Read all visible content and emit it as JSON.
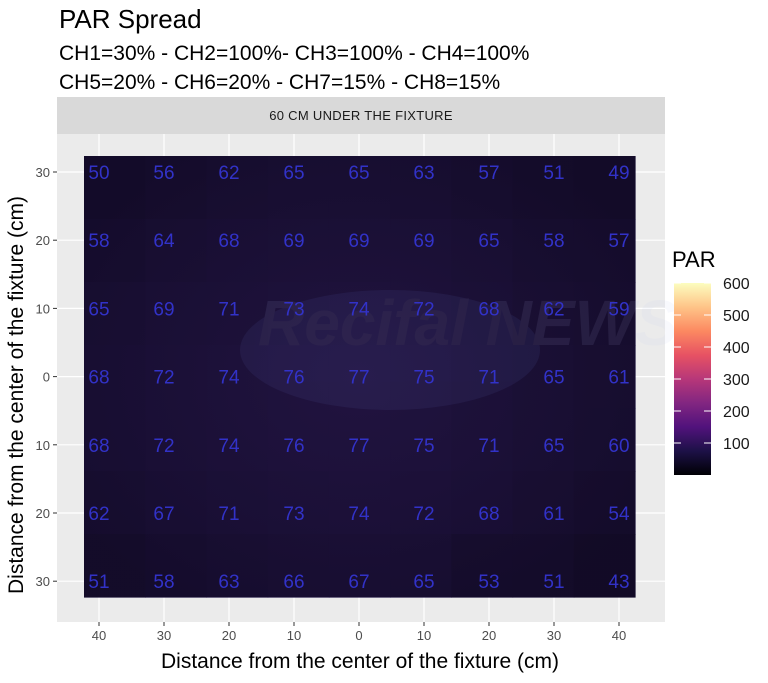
{
  "title": "PAR Spread",
  "subtitle_line1": "CH1=30% - CH2=100%- CH3=100% - CH4=100%",
  "subtitle_line2": "CH5=20% - CH6=20% - CH7=15% - CH8=15%",
  "watermark": "Recifal NEWS",
  "chart_data": {
    "type": "heatmap",
    "facet": "60 CM UNDER THE FIXTURE",
    "xlabel": "Distance from the center of the fixture (cm)",
    "ylabel": "Distance from the center of the fixture (cm)",
    "x_ticks": [
      "40",
      "30",
      "20",
      "10",
      "0",
      "10",
      "20",
      "30",
      "40"
    ],
    "y_ticks": [
      "30",
      "20",
      "10",
      "0",
      "10",
      "20",
      "30"
    ],
    "values": [
      [
        50,
        56,
        62,
        65,
        65,
        63,
        57,
        51,
        49
      ],
      [
        58,
        64,
        68,
        69,
        69,
        69,
        65,
        58,
        57
      ],
      [
        65,
        69,
        71,
        73,
        74,
        72,
        68,
        62,
        59
      ],
      [
        68,
        72,
        74,
        76,
        77,
        75,
        71,
        65,
        61
      ],
      [
        68,
        72,
        74,
        76,
        77,
        75,
        71,
        65,
        60
      ],
      [
        62,
        67,
        71,
        73,
        74,
        72,
        68,
        61,
        54
      ],
      [
        51,
        58,
        63,
        66,
        67,
        65,
        53,
        51,
        43
      ]
    ],
    "legend": {
      "title": "PAR",
      "ticks": [
        100,
        200,
        300,
        400,
        500,
        600
      ],
      "range": [
        0,
        600
      ],
      "palette": "magma",
      "colors": [
        "#000004",
        "#1d1147",
        "#51127c",
        "#822681",
        "#b73779",
        "#e75263",
        "#fc8961",
        "#fec488",
        "#fcfdbf"
      ]
    },
    "panel_background": "#ebebeb",
    "grid_color": "#ffffff",
    "label_color": "#3232c8"
  }
}
